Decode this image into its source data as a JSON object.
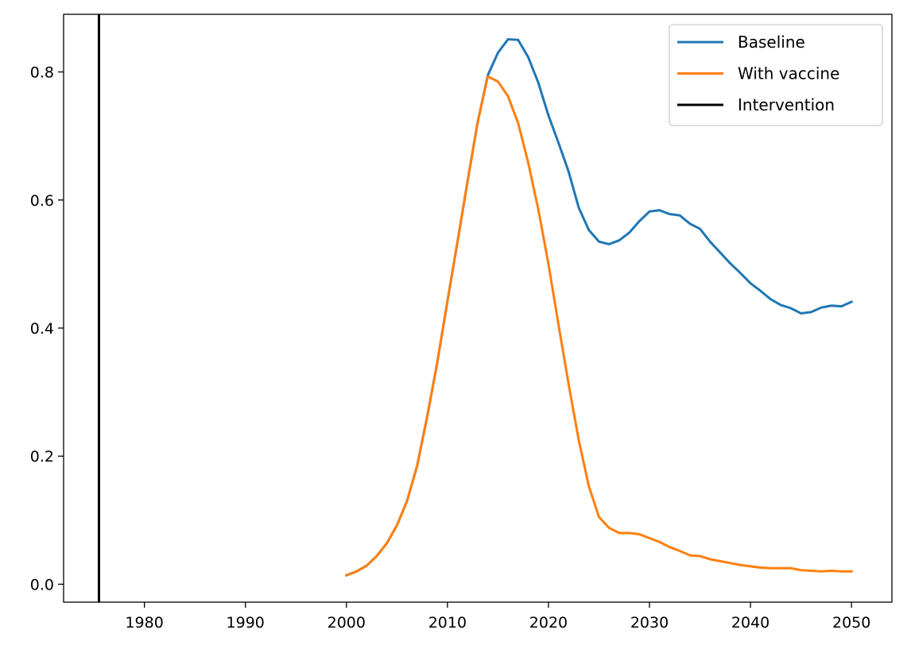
{
  "chart_data": {
    "type": "line",
    "title": "",
    "xlabel": "",
    "ylabel": "",
    "xlim": [
      1972,
      2054
    ],
    "ylim": [
      -0.028,
      0.89
    ],
    "xticks": [
      1980,
      1990,
      2000,
      2010,
      2020,
      2030,
      2040,
      2050
    ],
    "yticks": [
      0.0,
      0.2,
      0.4,
      0.6,
      0.8
    ],
    "xtick_labels": [
      "1980",
      "1990",
      "2000",
      "2010",
      "2020",
      "2030",
      "2040",
      "2050"
    ],
    "ytick_labels": [
      "0.0",
      "0.2",
      "0.4",
      "0.6",
      "0.8"
    ],
    "grid": false,
    "legend_position": "upper right",
    "x": [
      2000,
      2001,
      2002,
      2003,
      2004,
      2005,
      2006,
      2007,
      2008,
      2009,
      2010,
      2011,
      2012,
      2013,
      2014,
      2015,
      2016,
      2017,
      2018,
      2019,
      2020,
      2021,
      2022,
      2023,
      2024,
      2025,
      2026,
      2027,
      2028,
      2029,
      2030,
      2031,
      2032,
      2033,
      2034,
      2035,
      2036,
      2037,
      2038,
      2039,
      2040,
      2041,
      2042,
      2043,
      2044,
      2045,
      2046,
      2047,
      2048,
      2049,
      2050
    ],
    "series": [
      {
        "name": "Baseline",
        "color": "#1f77b4",
        "values": [
          0.014,
          0.02,
          0.029,
          0.044,
          0.064,
          0.092,
          0.13,
          0.185,
          0.262,
          0.347,
          0.442,
          0.535,
          0.63,
          0.722,
          0.795,
          0.83,
          0.851,
          0.85,
          0.823,
          0.783,
          0.732,
          0.689,
          0.644,
          0.588,
          0.553,
          0.535,
          0.531,
          0.537,
          0.549,
          0.567,
          0.582,
          0.584,
          0.578,
          0.576,
          0.563,
          0.555,
          0.535,
          0.518,
          0.501,
          0.486,
          0.47,
          0.458,
          0.445,
          0.436,
          0.431,
          0.423,
          0.425,
          0.432,
          0.435,
          0.434,
          0.441
        ]
      },
      {
        "name": "With vaccine",
        "color": "#ff7f0e",
        "values": [
          0.014,
          0.02,
          0.029,
          0.044,
          0.064,
          0.092,
          0.13,
          0.185,
          0.262,
          0.347,
          0.442,
          0.535,
          0.63,
          0.722,
          0.793,
          0.785,
          0.762,
          0.72,
          0.658,
          0.585,
          0.5,
          0.405,
          0.312,
          0.225,
          0.153,
          0.105,
          0.088,
          0.08,
          0.08,
          0.078,
          0.072,
          0.066,
          0.058,
          0.052,
          0.045,
          0.044,
          0.039,
          0.036,
          0.033,
          0.03,
          0.028,
          0.026,
          0.025,
          0.025,
          0.025,
          0.022,
          0.021,
          0.02,
          0.021,
          0.02,
          0.02
        ]
      }
    ],
    "vlines": [
      {
        "name": "Intervention",
        "x": 1975.5,
        "color": "#000000"
      }
    ],
    "legend": [
      "Baseline",
      "With vaccine",
      "Intervention"
    ]
  }
}
